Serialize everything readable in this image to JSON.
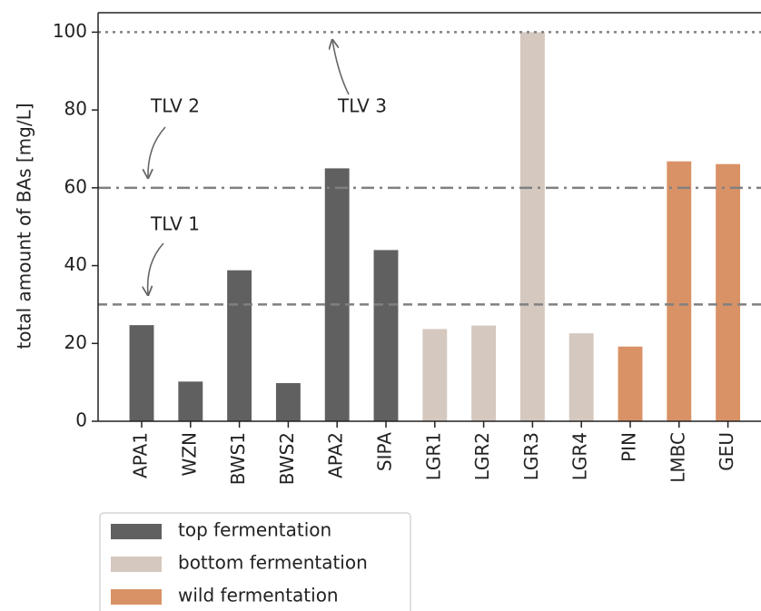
{
  "chart_data": {
    "type": "bar",
    "y_label": "total amount of BAs [mg/L]",
    "categories": [
      "APA1",
      "WZN",
      "BWS1",
      "BWS2",
      "APA2",
      "SIPA",
      "LGR1",
      "LGR2",
      "LGR3",
      "LGR4",
      "PIN",
      "LMBC",
      "GEU"
    ],
    "series": [
      {
        "name": "top fermentation",
        "color": "#606060",
        "values": [
          24.7,
          10.2,
          38.8,
          9.8,
          65,
          44,
          null,
          null,
          null,
          null,
          null,
          null,
          null
        ]
      },
      {
        "name": "bottom fermentation",
        "color": "#d5c8bf",
        "values": [
          null,
          null,
          null,
          null,
          null,
          null,
          23.7,
          24.6,
          100,
          22.6,
          null,
          null,
          null
        ]
      },
      {
        "name": "wild fermentation",
        "color": "#d99266",
        "values": [
          null,
          null,
          null,
          null,
          null,
          null,
          null,
          null,
          null,
          null,
          19.2,
          66.8,
          66.1
        ]
      }
    ],
    "reference_lines": [
      {
        "label": "TLV 1",
        "value": 30,
        "style": "dashed"
      },
      {
        "label": "TLV 2",
        "value": 60,
        "style": "dashdot"
      },
      {
        "label": "TLV 3",
        "value": 100,
        "style": "dotted"
      }
    ],
    "ylim": [
      0,
      105
    ],
    "yticks": [
      0,
      20,
      40,
      60,
      80,
      100
    ],
    "legend": "lower left"
  }
}
